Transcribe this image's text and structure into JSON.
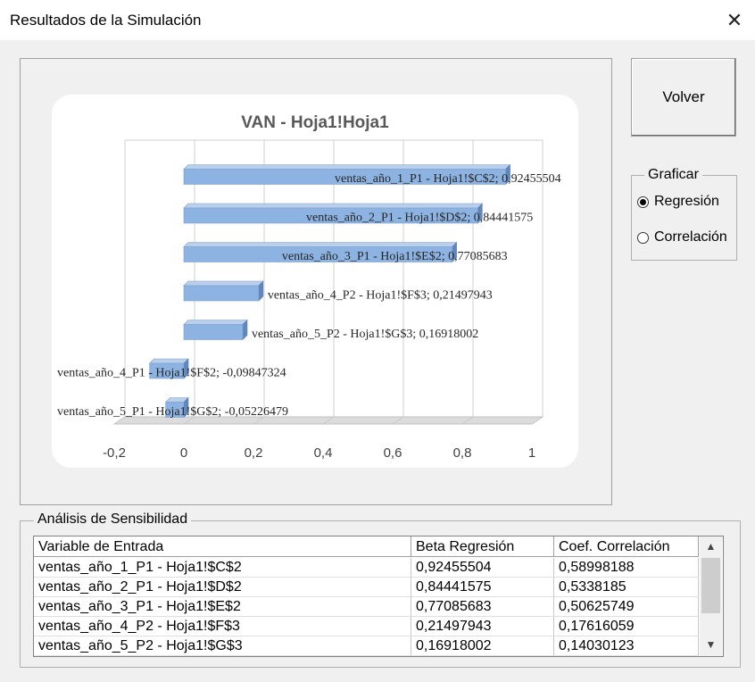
{
  "window": {
    "title": "Resultados de la Simulación",
    "close_glyph": "✕"
  },
  "buttons": {
    "volver": "Volver"
  },
  "graficar": {
    "legend": "Graficar",
    "options": [
      {
        "label": "Regresión",
        "checked": true
      },
      {
        "label": "Correlación",
        "checked": false
      }
    ]
  },
  "chart_data": {
    "type": "bar",
    "orientation": "horizontal",
    "title": "VAN - Hoja1!Hoja1",
    "xlim": [
      -0.2,
      1
    ],
    "x_ticks": [
      "-0,2",
      "0",
      "0,2",
      "0,4",
      "0,6",
      "0,8",
      "1"
    ],
    "bar_color": "#8db3e2",
    "grid": true,
    "categories": [
      "ventas_año_1_P1  - Hoja1!$C$2",
      "ventas_año_2_P1  - Hoja1!$D$2",
      "ventas_año_3_P1  - Hoja1!$E$2",
      "ventas_año_4_P2  - Hoja1!$F$3",
      "ventas_año_5_P2  - Hoja1!$G$3",
      "ventas_año_4_P1  - Hoja1!$F$2",
      "ventas_año_5_P1  - Hoja1!$G$2"
    ],
    "values": [
      0.92455504,
      0.84441575,
      0.77085683,
      0.21497943,
      0.16918002,
      -0.09847324,
      -0.05226479
    ],
    "data_labels": [
      "ventas_año_1_P1  - Hoja1!$C$2;  0,92455504",
      "ventas_año_2_P1  - Hoja1!$D$2;  0,84441575",
      "ventas_año_3_P1  - Hoja1!$E$2;  0,77085683",
      "ventas_año_4_P2  - Hoja1!$F$3;  0,21497943",
      "ventas_año_5_P2  - Hoja1!$G$3;  0,16918002",
      "ventas_año_4_P1  - Hoja1!$F$2;  -0,09847324",
      "ventas_año_5_P1  - Hoja1!$G$2;  -0,05226479"
    ]
  },
  "sensibilidad": {
    "legend": "Análisis de Sensibilidad",
    "columns": [
      "Variable de Entrada",
      "Beta Regresión",
      "Coef. Correlación"
    ],
    "rows": [
      [
        "ventas_año_1_P1 - Hoja1!$C$2",
        "0,92455504",
        "0,58998188"
      ],
      [
        "ventas_año_2_P1 - Hoja1!$D$2",
        "0,84441575",
        "0,5338185"
      ],
      [
        "ventas_año_3_P1 - Hoja1!$E$2",
        "0,77085683",
        "0,50625749"
      ],
      [
        "ventas_año_4_P2 - Hoja1!$F$3",
        "0,21497943",
        "0,17616059"
      ],
      [
        "ventas_año_5_P2 - Hoja1!$G$3",
        "0,16918002",
        "0,14030123"
      ]
    ]
  }
}
